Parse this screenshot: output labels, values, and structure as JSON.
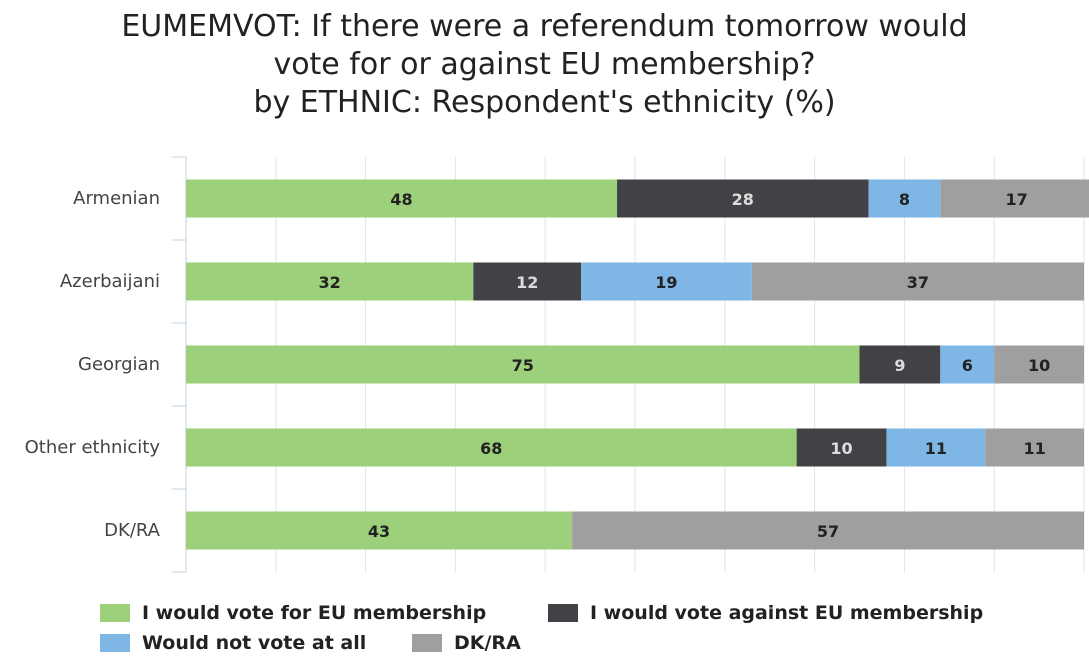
{
  "chart_data": {
    "type": "bar",
    "orientation": "horizontal",
    "stacked": true,
    "title_lines": [
      "EUMEMVOT: If there were a referendum tomorrow would",
      "vote for or against EU membership?",
      "by ETHNIC: Respondent's ethnicity (%)"
    ],
    "categories": [
      "Armenian",
      "Azerbaijani",
      "Georgian",
      "Other ethnicity",
      "DK/RA"
    ],
    "xlim": [
      0,
      100
    ],
    "grid": true,
    "legend_position": "bottom",
    "series": [
      {
        "name": "I would vote for EU membership",
        "color": "#9dd07a",
        "label_color": "#222222",
        "values": [
          48,
          32,
          75,
          68,
          43
        ]
      },
      {
        "name": "I would vote against EU membership",
        "color": "#414146",
        "label_color": "#dddddd",
        "values": [
          28,
          12,
          9,
          10,
          0
        ]
      },
      {
        "name": "Would not vote at all",
        "color": "#7eb6e6",
        "label_color": "#222222",
        "values": [
          8,
          19,
          6,
          11,
          0
        ]
      },
      {
        "name": "DK/RA",
        "color": "#9f9f9f",
        "label_color": "#222222",
        "values": [
          17,
          37,
          10,
          11,
          57
        ]
      }
    ]
  }
}
